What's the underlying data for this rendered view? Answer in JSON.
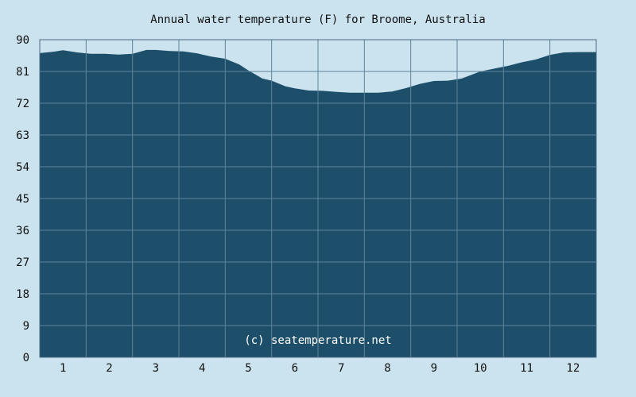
{
  "chart_data": {
    "type": "area",
    "title": "Annual water temperature (F) for Broome, Australia",
    "xlabel": "",
    "ylabel": "",
    "x_ticks": [
      "1",
      "2",
      "3",
      "4",
      "5",
      "6",
      "7",
      "8",
      "9",
      "10",
      "11",
      "12"
    ],
    "xlim": [
      0.5,
      12.5
    ],
    "ylim": [
      0,
      90
    ],
    "y_ticks": [
      0,
      9,
      18,
      27,
      36,
      45,
      54,
      63,
      72,
      81,
      90
    ],
    "grid": true,
    "x": [
      0.5,
      0.8,
      1.0,
      1.3,
      1.6,
      1.9,
      2.2,
      2.5,
      2.8,
      3.0,
      3.3,
      3.6,
      3.9,
      4.2,
      4.5,
      4.8,
      5.0,
      5.3,
      5.5,
      5.8,
      6.0,
      6.3,
      6.6,
      6.9,
      7.2,
      7.5,
      7.8,
      8.1,
      8.4,
      8.7,
      9.0,
      9.3,
      9.6,
      10.0,
      10.3,
      10.6,
      10.9,
      11.2,
      11.5,
      11.8,
      12.1,
      12.5
    ],
    "values": [
      86.2,
      86.6,
      87.0,
      86.4,
      86.0,
      86.0,
      85.8,
      86.0,
      87.1,
      87.1,
      86.8,
      86.7,
      86.1,
      85.2,
      84.6,
      83.0,
      81.3,
      79.0,
      78.4,
      76.8,
      76.2,
      75.6,
      75.5,
      75.2,
      75.0,
      75.0,
      75.0,
      75.3,
      76.3,
      77.5,
      78.3,
      78.4,
      79.0,
      81.0,
      81.8,
      82.6,
      83.6,
      84.4,
      85.7,
      86.4,
      86.5,
      86.5
    ],
    "colors": {
      "fill": "#1e4f6a",
      "background": "#cbe3ef",
      "grid": "#5e8399",
      "axis": "#4a6a80"
    },
    "watermark": "(c) seatemperature.net"
  }
}
